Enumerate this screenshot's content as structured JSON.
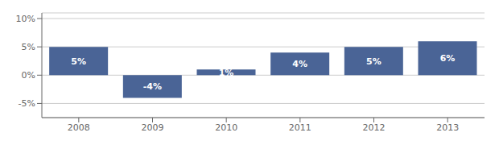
{
  "chart_data": {
    "type": "bar",
    "categories": [
      "2008",
      "2009",
      "2010",
      "2011",
      "2012",
      "2013"
    ],
    "values": [
      5,
      -4,
      1,
      4,
      5,
      6
    ],
    "value_labels": [
      "5%",
      "-4%",
      "1%",
      "4%",
      "5%",
      "6%"
    ],
    "data_labels": true,
    "color": "#4a6496",
    "ylim": [
      -7.5,
      11
    ],
    "yticks": [
      {
        "value": -5,
        "label": "-5%"
      },
      {
        "value": 0,
        "label": "0%"
      },
      {
        "value": 5,
        "label": "5%"
      },
      {
        "value": 10,
        "label": "10%"
      }
    ],
    "grid": true
  }
}
